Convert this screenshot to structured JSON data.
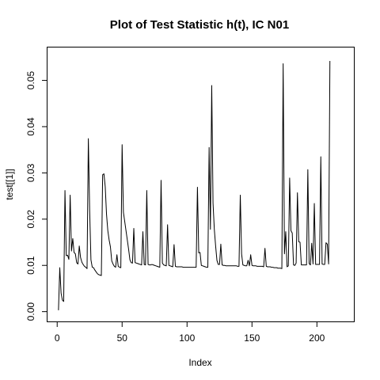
{
  "chart_data": {
    "type": "line",
    "title": "Plot of Test Statistic h(t), IC N01",
    "xlabel": "Index",
    "ylabel": "test[[1]]",
    "xlim": [
      1,
      220
    ],
    "ylim": [
      0.0,
      0.055
    ],
    "x_ticks": [
      0,
      50,
      100,
      150,
      200
    ],
    "y_ticks": [
      0.0,
      0.01,
      0.02,
      0.03,
      0.04,
      0.05
    ],
    "x_tick_labels": [
      "0",
      "50",
      "100",
      "150",
      "200"
    ],
    "y_tick_labels": [
      "0.00",
      "0.01",
      "0.02",
      "0.03",
      "0.04",
      "0.05"
    ],
    "grid": false,
    "series": [
      {
        "values": [
          0.0003,
          0.0095,
          0.004,
          0.0025,
          0.0022,
          0.0262,
          0.0121,
          0.0122,
          0.0113,
          0.0252,
          0.0131,
          0.0158,
          0.0128,
          0.0125,
          0.0106,
          0.0103,
          0.0142,
          0.0117,
          0.0107,
          0.0102,
          0.0098,
          0.0096,
          0.0093,
          0.0374,
          0.022,
          0.0112,
          0.0096,
          0.0095,
          0.009,
          0.0086,
          0.0082,
          0.008,
          0.0079,
          0.0078,
          0.0296,
          0.0298,
          0.027,
          0.021,
          0.0175,
          0.0155,
          0.014,
          0.011,
          0.0103,
          0.0098,
          0.0096,
          0.0123,
          0.0098,
          0.0096,
          0.0095,
          0.0361,
          0.0215,
          0.0195,
          0.0175,
          0.0155,
          0.0135,
          0.0112,
          0.0106,
          0.0105,
          0.018,
          0.0106,
          0.0105,
          0.0104,
          0.0103,
          0.0102,
          0.0101,
          0.0173,
          0.0102,
          0.0101,
          0.0262,
          0.0102,
          0.0101,
          0.0101,
          0.0102,
          0.0101,
          0.01,
          0.0099,
          0.0098,
          0.0097,
          0.0096,
          0.0284,
          0.0105,
          0.0101,
          0.01,
          0.0099,
          0.0188,
          0.01,
          0.0099,
          0.0098,
          0.0097,
          0.0145,
          0.0098,
          0.0097,
          0.0097,
          0.0097,
          0.0097,
          0.0097,
          0.0096,
          0.0096,
          0.0096,
          0.0096,
          0.0096,
          0.0096,
          0.0096,
          0.0096,
          0.0096,
          0.0096,
          0.0096,
          0.0269,
          0.0127,
          0.0128,
          0.01,
          0.0099,
          0.0098,
          0.0097,
          0.0096,
          0.0096,
          0.0355,
          0.0178,
          0.0489,
          0.0235,
          0.0178,
          0.0142,
          0.0111,
          0.0102,
          0.0102,
          0.0146,
          0.0101,
          0.01,
          0.01,
          0.0099,
          0.0099,
          0.0099,
          0.0099,
          0.0099,
          0.0099,
          0.0099,
          0.0099,
          0.0099,
          0.0098,
          0.0098,
          0.0252,
          0.0125,
          0.0101,
          0.01,
          0.0099,
          0.0099,
          0.0111,
          0.0099,
          0.0123,
          0.01,
          0.0099,
          0.0099,
          0.0099,
          0.0098,
          0.0098,
          0.0098,
          0.0098,
          0.0098,
          0.0097,
          0.0137,
          0.0098,
          0.0097,
          0.0097,
          0.0097,
          0.0096,
          0.0096,
          0.0095,
          0.0095,
          0.0095,
          0.0094,
          0.0094,
          0.0094,
          0.0093,
          0.0536,
          0.0125,
          0.0173,
          0.0097,
          0.0099,
          0.0289,
          0.0175,
          0.017,
          0.0101,
          0.01,
          0.0105,
          0.0257,
          0.0151,
          0.015,
          0.0101,
          0.0101,
          0.0101,
          0.0101,
          0.0101,
          0.0307,
          0.0104,
          0.0101,
          0.0148,
          0.0103,
          0.0234,
          0.0102,
          0.0102,
          0.0102,
          0.0102,
          0.0335,
          0.0103,
          0.0102,
          0.0102,
          0.0149,
          0.0146,
          0.0103,
          0.0542
        ]
      }
    ]
  }
}
